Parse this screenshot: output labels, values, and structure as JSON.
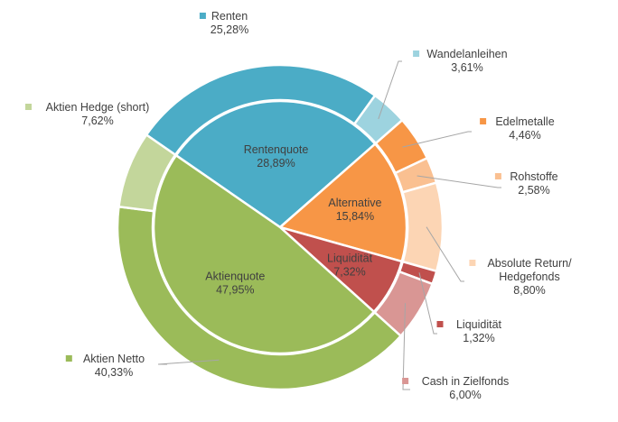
{
  "chart_data": {
    "type": "pie",
    "variant": "nested-donut",
    "inner": [
      {
        "label": "Rentenquote",
        "value": 28.89,
        "value_text": "28,89%",
        "color": "#4BACC6"
      },
      {
        "label": "Alternative",
        "value": 15.84,
        "value_text": "15,84%",
        "color": "#F79646"
      },
      {
        "label": "Liquidität",
        "value": 7.32,
        "value_text": "7,32%",
        "color": "#C0504D"
      },
      {
        "label": "Aktienquote",
        "value": 47.95,
        "value_text": "47,95%",
        "color": "#9BBB59"
      }
    ],
    "outer": [
      {
        "label": "Renten",
        "value": 25.28,
        "value_text": "25,28%",
        "color": "#4BACC6"
      },
      {
        "label": "Wandelanleihen",
        "value": 3.61,
        "value_text": "3,61%",
        "color": "#9DD3DF"
      },
      {
        "label": "Edelmetalle",
        "value": 4.46,
        "value_text": "4,46%",
        "color": "#F79646"
      },
      {
        "label": "Rohstoffe",
        "value": 2.58,
        "value_text": "2,58%",
        "color": "#FAC091"
      },
      {
        "label": "Absolute Return/\nHedgefonds",
        "value": 8.8,
        "value_text": "8,80%",
        "color": "#FCD5B4"
      },
      {
        "label": "Liquidität",
        "value": 1.32,
        "value_text": "1,32%",
        "color": "#C0504D"
      },
      {
        "label": "Cash in Zielfonds",
        "value": 6.0,
        "value_text": "6,00%",
        "color": "#D99694"
      },
      {
        "label": "Aktien Netto",
        "value": 40.33,
        "value_text": "40,33%",
        "color": "#9BBB59"
      },
      {
        "label": "Aktien Hedge (short)",
        "value": 7.62,
        "value_text": "7,62%",
        "color": "#C3D69B"
      }
    ]
  }
}
